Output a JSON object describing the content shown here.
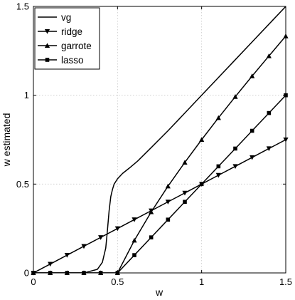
{
  "chart_data": {
    "type": "line",
    "xlabel": "w",
    "ylabel": "w estimated",
    "xlim": [
      0,
      1.5
    ],
    "ylim": [
      0,
      1.5
    ],
    "grid": true,
    "legend_position": "top-left",
    "xticks": [
      "0",
      "0.5",
      "1",
      "1.5"
    ],
    "yticks": [
      "0",
      "0.5",
      "1",
      "1.5"
    ],
    "series": [
      {
        "name": "vg",
        "marker": "none",
        "x": [
          0,
          0.3,
          0.38,
          0.41,
          0.43,
          0.44,
          0.45,
          0.46,
          0.47,
          0.48,
          0.5,
          0.53,
          0.57,
          0.62,
          0.7,
          0.8,
          0.9,
          1.0,
          1.1,
          1.2,
          1.3,
          1.4,
          1.5
        ],
        "y": [
          0,
          0,
          0.02,
          0.06,
          0.14,
          0.24,
          0.35,
          0.43,
          0.47,
          0.5,
          0.53,
          0.56,
          0.59,
          0.63,
          0.705,
          0.8,
          0.9,
          1.0,
          1.1,
          1.2,
          1.3,
          1.4,
          1.5
        ]
      },
      {
        "name": "ridge",
        "marker": "triangle-down",
        "x": [
          0,
          0.1,
          0.2,
          0.3,
          0.4,
          0.5,
          0.6,
          0.7,
          0.8,
          0.9,
          1.0,
          1.1,
          1.2,
          1.3,
          1.4,
          1.5
        ],
        "y": [
          0,
          0.05,
          0.1,
          0.15,
          0.2,
          0.25,
          0.3,
          0.35,
          0.4,
          0.45,
          0.5,
          0.55,
          0.6,
          0.65,
          0.7,
          0.75
        ]
      },
      {
        "name": "garrote",
        "marker": "triangle-up",
        "x": [
          0,
          0.1,
          0.2,
          0.3,
          0.4,
          0.5,
          0.6,
          0.7,
          0.8,
          0.9,
          1.0,
          1.1,
          1.2,
          1.3,
          1.4,
          1.5
        ],
        "y": [
          0,
          0,
          0,
          0,
          0,
          0,
          0.183,
          0.343,
          0.488,
          0.622,
          0.75,
          0.873,
          0.992,
          1.108,
          1.221,
          1.333
        ]
      },
      {
        "name": "lasso",
        "marker": "square",
        "x": [
          0,
          0.1,
          0.2,
          0.3,
          0.4,
          0.5,
          0.6,
          0.7,
          0.8,
          0.9,
          1.0,
          1.1,
          1.2,
          1.3,
          1.4,
          1.5
        ],
        "y": [
          0,
          0,
          0,
          0,
          0,
          0,
          0.1,
          0.2,
          0.3,
          0.4,
          0.5,
          0.6,
          0.7,
          0.8,
          0.9,
          1.0
        ]
      }
    ]
  }
}
